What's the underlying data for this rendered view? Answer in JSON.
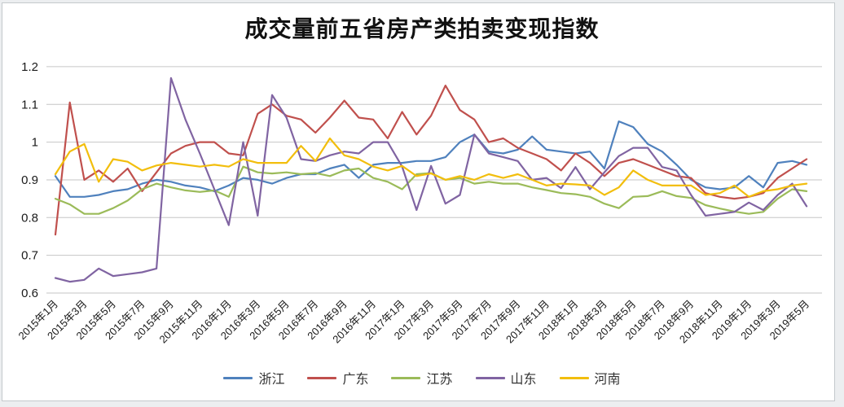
{
  "chart_data": {
    "type": "line",
    "title": "成交量前五省房产类拍卖变现指数",
    "xlabel": "",
    "ylabel": "",
    "ylim": [
      0.6,
      1.2
    ],
    "y_tick_step": 0.1,
    "y_tick_labels": [
      "0.6",
      "0.7",
      "0.8",
      "0.9",
      "1",
      "1.1",
      "1.2"
    ],
    "x_tick_step": 2,
    "grid": "horizontal",
    "legend_position": "bottom",
    "categories": [
      "2015年1月",
      "2015年2月",
      "2015年3月",
      "2015年4月",
      "2015年5月",
      "2015年6月",
      "2015年7月",
      "2015年8月",
      "2015年9月",
      "2015年10月",
      "2015年11月",
      "2015年12月",
      "2016年1月",
      "2016年2月",
      "2016年3月",
      "2016年4月",
      "2016年5月",
      "2016年6月",
      "2016年7月",
      "2016年8月",
      "2016年9月",
      "2016年10月",
      "2016年11月",
      "2016年12月",
      "2017年1月",
      "2017年2月",
      "2017年3月",
      "2017年4月",
      "2017年5月",
      "2017年6月",
      "2017年7月",
      "2017年8月",
      "2017年9月",
      "2017年10月",
      "2017年11月",
      "2017年12月",
      "2018年1月",
      "2018年2月",
      "2018年3月",
      "2018年4月",
      "2018年5月",
      "2018年6月",
      "2018年7月",
      "2018年8月",
      "2018年9月",
      "2018年10月",
      "2018年11月",
      "2018年12月",
      "2019年1月",
      "2019年2月",
      "2019年3月",
      "2019年4月",
      "2019年5月"
    ],
    "series": [
      {
        "name": "浙江",
        "color": "#4F81BD",
        "values": [
          0.91,
          0.855,
          0.855,
          0.86,
          0.87,
          0.875,
          0.89,
          0.9,
          0.895,
          0.885,
          0.88,
          0.87,
          0.885,
          0.905,
          0.9,
          0.89,
          0.905,
          0.915,
          0.915,
          0.93,
          0.94,
          0.905,
          0.94,
          0.945,
          0.945,
          0.95,
          0.95,
          0.96,
          1.0,
          1.02,
          0.975,
          0.97,
          0.98,
          1.015,
          0.98,
          0.975,
          0.97,
          0.975,
          0.93,
          1.055,
          1.04,
          0.995,
          0.975,
          0.94,
          0.9,
          0.88,
          0.875,
          0.88,
          0.91,
          0.88,
          0.945,
          0.95,
          0.94
        ]
      },
      {
        "name": "广东",
        "color": "#C0504D",
        "values": [
          0.755,
          1.105,
          0.9,
          0.925,
          0.895,
          0.93,
          0.87,
          0.92,
          0.97,
          0.99,
          1.0,
          1.0,
          0.97,
          0.965,
          1.075,
          1.1,
          1.07,
          1.06,
          1.025,
          1.065,
          1.11,
          1.065,
          1.06,
          1.01,
          1.08,
          1.02,
          1.07,
          1.15,
          1.085,
          1.06,
          1.0,
          1.01,
          0.985,
          0.97,
          0.955,
          0.925,
          0.97,
          0.945,
          0.91,
          0.945,
          0.955,
          0.94,
          0.925,
          0.91,
          0.905,
          0.865,
          0.855,
          0.85,
          0.855,
          0.865,
          0.905,
          0.93,
          0.955
        ]
      },
      {
        "name": "江苏",
        "color": "#9BBB59",
        "values": [
          0.85,
          0.835,
          0.81,
          0.81,
          0.825,
          0.845,
          0.875,
          0.89,
          0.88,
          0.872,
          0.868,
          0.872,
          0.855,
          0.935,
          0.92,
          0.917,
          0.92,
          0.915,
          0.918,
          0.91,
          0.925,
          0.93,
          0.905,
          0.895,
          0.875,
          0.915,
          0.918,
          0.9,
          0.905,
          0.89,
          0.895,
          0.89,
          0.89,
          0.88,
          0.873,
          0.865,
          0.862,
          0.855,
          0.837,
          0.825,
          0.855,
          0.857,
          0.87,
          0.857,
          0.852,
          0.833,
          0.824,
          0.816,
          0.81,
          0.815,
          0.85,
          0.875,
          0.87
        ]
      },
      {
        "name": "山东",
        "color": "#8064A2",
        "values": [
          0.64,
          0.63,
          0.635,
          0.665,
          0.645,
          0.65,
          0.655,
          0.665,
          1.17,
          1.06,
          0.97,
          0.875,
          0.78,
          1.0,
          0.805,
          1.125,
          1.065,
          0.955,
          0.95,
          0.965,
          0.975,
          0.97,
          1.0,
          1.0,
          0.935,
          0.82,
          0.937,
          0.837,
          0.86,
          1.02,
          0.97,
          0.96,
          0.95,
          0.9,
          0.905,
          0.878,
          0.934,
          0.875,
          0.92,
          0.963,
          0.985,
          0.985,
          0.934,
          0.925,
          0.86,
          0.805,
          0.81,
          0.815,
          0.84,
          0.82,
          0.86,
          0.89,
          0.83
        ]
      },
      {
        "name": "河南",
        "color": "#F2BE0D",
        "values": [
          0.915,
          0.975,
          0.995,
          0.895,
          0.955,
          0.948,
          0.925,
          0.938,
          0.945,
          0.94,
          0.935,
          0.94,
          0.935,
          0.955,
          0.945,
          0.945,
          0.945,
          0.99,
          0.95,
          1.01,
          0.965,
          0.955,
          0.935,
          0.925,
          0.937,
          0.91,
          0.917,
          0.9,
          0.91,
          0.9,
          0.915,
          0.905,
          0.915,
          0.9,
          0.885,
          0.89,
          0.888,
          0.885,
          0.86,
          0.88,
          0.925,
          0.9,
          0.885,
          0.885,
          0.885,
          0.86,
          0.865,
          0.885,
          0.855,
          0.87,
          0.875,
          0.885,
          0.89
        ]
      }
    ]
  }
}
